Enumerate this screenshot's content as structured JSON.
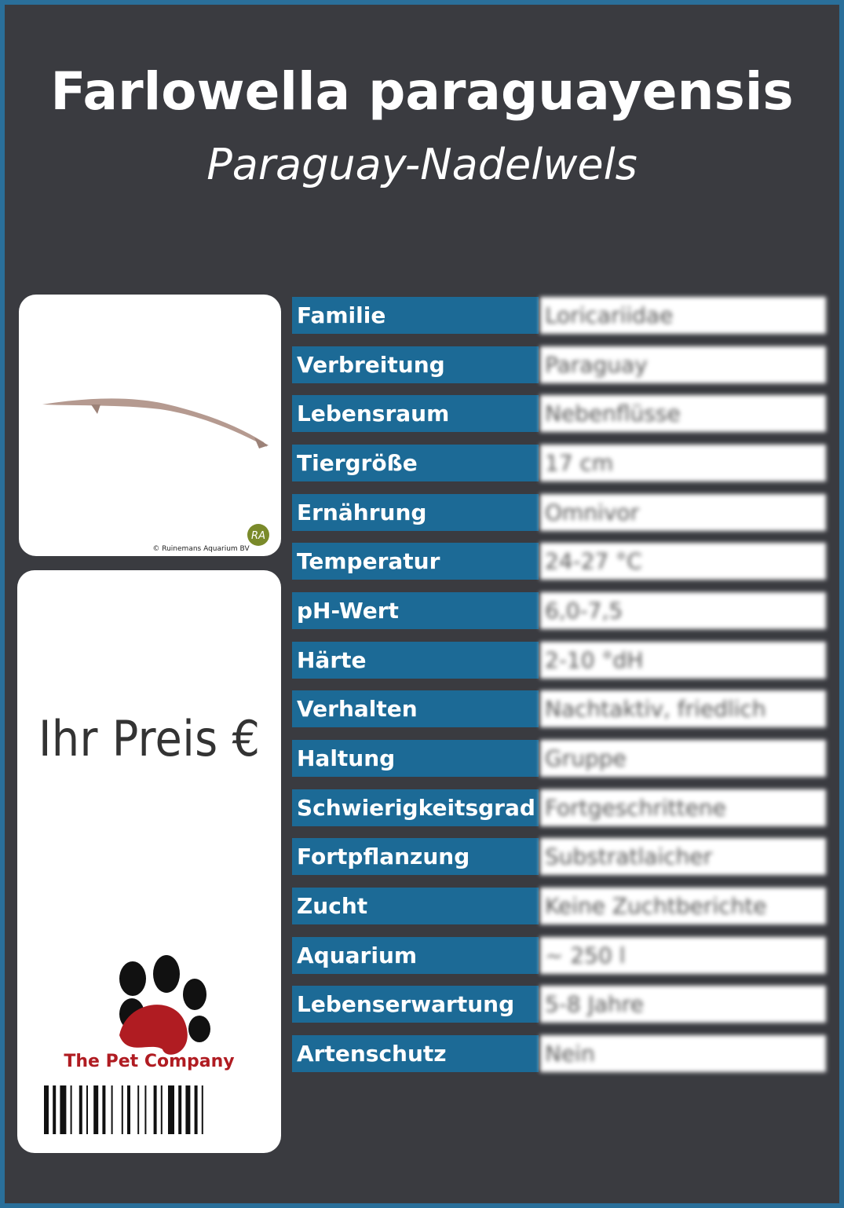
{
  "header": {
    "title": "Farlowella paraguayensis",
    "subtitle": "Paraguay-Nadelwels"
  },
  "image": {
    "credit": "© Ruinemans Aquarium BV",
    "logo": "RA"
  },
  "price": {
    "label": "Ihr Preis €"
  },
  "brand": {
    "name": "The Pet Company"
  },
  "table": {
    "rows": [
      [
        "Familie",
        "Loricariidae"
      ],
      [
        "Verbreitung",
        "Paraguay"
      ],
      [
        "Lebensraum",
        "Nebenflüsse"
      ],
      [
        "Tiergröße",
        "17 cm"
      ],
      [
        "Ernährung",
        "Omnivor"
      ],
      [
        "Temperatur",
        "24-27 °C"
      ],
      [
        "pH-Wert",
        "6,0-7,5"
      ],
      [
        "Härte",
        "2-10 °dH"
      ],
      [
        "Verhalten",
        "Nachtaktiv, friedlich"
      ],
      [
        "Haltung",
        "Gruppe"
      ],
      [
        "Schwierigkeitsgrad",
        "Fortgeschrittene"
      ],
      [
        "Fortpflanzung",
        "Substratlaicher"
      ],
      [
        "Zucht",
        "Keine Zuchtberichte"
      ],
      [
        "Aquarium",
        "~ 250 l"
      ],
      [
        "Lebenserwartung",
        "5-8 Jahre"
      ],
      [
        "Artenschutz",
        "Nein"
      ]
    ]
  }
}
